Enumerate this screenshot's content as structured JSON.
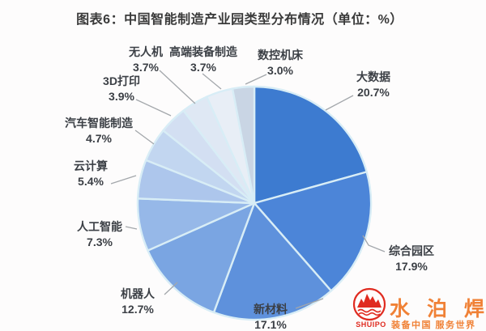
{
  "title": "图表6：中国智能制造产业园类型分布情况（单位：%）",
  "chart_data": {
    "type": "pie",
    "title": "图表6：中国智能制造产业园类型分布情况",
    "unit": "%",
    "start_angle_deg": 0,
    "direction": "clockwise-from-top",
    "legend": "none (direct category labels with leader lines)",
    "categories": [
      "大数据",
      "综合园区",
      "新材料",
      "机器人",
      "人工智能",
      "云计算",
      "汽车智能制造",
      "3D打印",
      "无人机",
      "高端装备制造",
      "数控机床"
    ],
    "values": [
      20.7,
      17.9,
      17.1,
      12.7,
      7.3,
      5.4,
      4.7,
      3.9,
      3.7,
      3.7,
      3.0
    ],
    "labels": [
      "20.7%",
      "17.9%",
      "17.1%",
      "12.7%",
      "7.3%",
      "5.4%",
      "4.7%",
      "3.9%",
      "3.7%",
      "3.7%",
      "3.0%"
    ],
    "colors": [
      "#3d7bd0",
      "#4c85d8",
      "#5e91dc",
      "#7aa5e2",
      "#96b8e8",
      "#adc6ec",
      "#c2d6f0",
      "#d3dff2",
      "#dfe8f4",
      "#e8eef6",
      "#c9d5e4"
    ],
    "divider_color": "#d8edf6",
    "leader_line_color": "#a3a7ab"
  },
  "watermark": {
    "logo_text": "SHUIPO",
    "brand_name": "水 泊 焊 割",
    "tagline": "装备中国 服务世界",
    "brand_color": "#f08136",
    "logo_color": "#e02b20"
  }
}
